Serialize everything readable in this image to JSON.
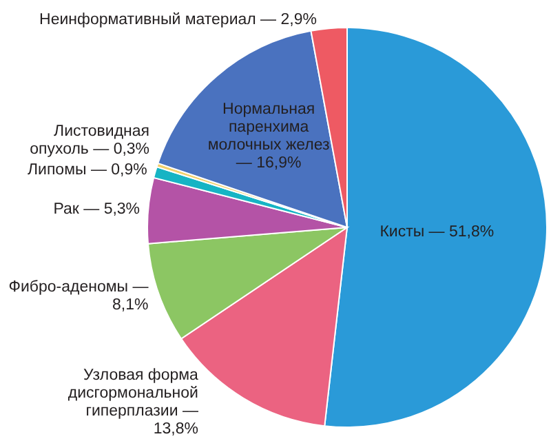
{
  "chart_data": {
    "type": "pie",
    "categories": [
      "Кисты",
      "Узловая форма дисгормональной гиперплазии",
      "Фибро-аденомы",
      "Рак",
      "Липомы",
      "Листовидная опухоль",
      "Нормальная паренхима молочных желез",
      "Неинформативный материал"
    ],
    "values": [
      51.8,
      13.8,
      8.1,
      5.3,
      0.9,
      0.3,
      16.9,
      2.9
    ],
    "value_labels": [
      "— 51,8%",
      "— 13,8%",
      "— 8,1%",
      "— 5,3%",
      "— 0,9%",
      "— 0,3%",
      "— 16,9%",
      "— 2,9%"
    ],
    "colors": [
      "#2a9ad8",
      "#eb6381",
      "#8cc663",
      "#b453a6",
      "#16b4c4",
      "#f2cf6a",
      "#4a72bf",
      "#ee5a63"
    ]
  }
}
